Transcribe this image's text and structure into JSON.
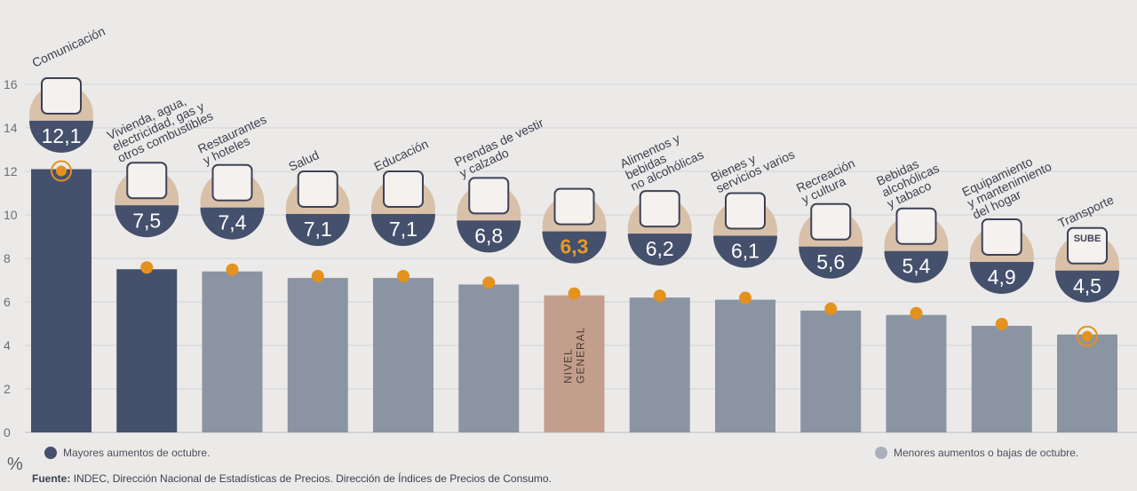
{
  "chart_data": {
    "type": "bar",
    "ylim": [
      0,
      16
    ],
    "yticks": [
      0,
      2,
      4,
      6,
      8,
      10,
      12,
      14,
      16
    ],
    "categories": [
      {
        "label": [
          "Comunicación"
        ],
        "value": 12.1,
        "text": "12,1",
        "group": "mayor",
        "icon": "mobile-phone-icon"
      },
      {
        "label": [
          "Vivienda, agua,",
          "electricidad, gas y",
          "otros combustibles"
        ],
        "value": 7.5,
        "text": "7,5",
        "group": "mayor",
        "icon": "lightbulb-icon"
      },
      {
        "label": [
          "Restaurantes",
          "y hoteles"
        ],
        "value": 7.4,
        "text": "7,4",
        "group": "menor",
        "icon": "plate-cutlery-icon"
      },
      {
        "label": [
          "Salud"
        ],
        "value": 7.1,
        "text": "7,1",
        "group": "menor",
        "icon": "medical-cross-icon"
      },
      {
        "label": [
          "Educación"
        ],
        "value": 7.1,
        "text": "7,1",
        "group": "menor",
        "icon": "notebook-icon"
      },
      {
        "label": [
          "Prendas de vestir",
          "y calzado"
        ],
        "value": 6.8,
        "text": "6,8",
        "group": "menor",
        "icon": "tshirt-shoe-icon"
      },
      {
        "label": [],
        "value": 6.3,
        "text": "6,3",
        "group": "general",
        "icon": "shopping-bag-icon",
        "bar_label": [
          "NIVEL",
          "GENERAL"
        ]
      },
      {
        "label": [
          "Alimentos y",
          "bebidas",
          "no alcohólicas"
        ],
        "value": 6.2,
        "text": "6,2",
        "group": "menor",
        "icon": "food-icon"
      },
      {
        "label": [
          "Bienes y",
          "servicios varios"
        ],
        "value": 6.1,
        "text": "6,1",
        "group": "menor",
        "icon": "comb-scissors-icon"
      },
      {
        "label": [
          "Recreación",
          "y cultura"
        ],
        "value": 5.6,
        "text": "5,6",
        "group": "menor",
        "icon": "beach-umbrella-icon"
      },
      {
        "label": [
          "Bebidas",
          "alcohólicas",
          "y tabaco"
        ],
        "value": 5.4,
        "text": "5,4",
        "group": "menor",
        "icon": "bottle-cigarette-icon"
      },
      {
        "label": [
          "Equipamiento",
          "y mantenimiento",
          "del hogar"
        ],
        "value": 4.9,
        "text": "4,9",
        "group": "menor",
        "icon": "washing-machine-icon"
      },
      {
        "label": [
          "Transporte"
        ],
        "value": 4.5,
        "text": "4,5",
        "group": "menor",
        "icon": "car-sube-icon",
        "icon_text": "SUBE"
      }
    ]
  },
  "colors": {
    "mayor": "#45506c",
    "menor": "#8b94a3",
    "general": "#c49e8c",
    "general_text": "#e59a2a",
    "marker": "#e3921f",
    "icon_bg": "#d5b89d",
    "grid": "#cfd2d8",
    "background": "#eceae8"
  },
  "legend": {
    "mayores": "Mayores aumentos de octubre.",
    "menores": "Menores aumentos o bajas de octubre."
  },
  "percent_symbol": "%",
  "source": {
    "label": "Fuente:",
    "text": "INDEC, Dirección Nacional de Estadísticas de Precios. Dirección de Índices de Precios de Consumo."
  }
}
